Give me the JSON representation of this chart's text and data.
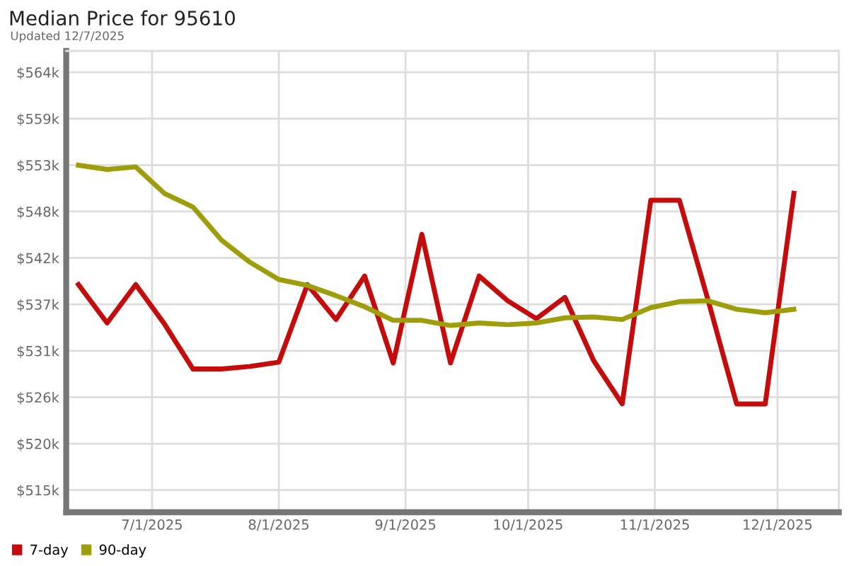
{
  "chart_data": {
    "type": "line",
    "title": "Median Price for 95610",
    "subtitle": "Updated 12/7/2025",
    "x": [
      "2025-06-13",
      "2025-06-20",
      "2025-06-27",
      "2025-07-04",
      "2025-07-11",
      "2025-07-18",
      "2025-07-25",
      "2025-08-01",
      "2025-08-08",
      "2025-08-15",
      "2025-08-22",
      "2025-08-29",
      "2025-09-05",
      "2025-09-12",
      "2025-09-19",
      "2025-09-26",
      "2025-10-03",
      "2025-10-10",
      "2025-10-17",
      "2025-10-24",
      "2025-10-31",
      "2025-11-07",
      "2025-11-14",
      "2025-11-21",
      "2025-11-28",
      "2025-12-05"
    ],
    "series": [
      {
        "name": "7-day",
        "color": "#c40c0c",
        "values": [
          539.1,
          534.6,
          539.1,
          534.5,
          529.2,
          529.2,
          529.5,
          530.0,
          539.1,
          535.0,
          540.1,
          529.9,
          545.0,
          529.9,
          540.1,
          537.2,
          535.1,
          537.6,
          530.2,
          525.1,
          549.0,
          549.0,
          537.3,
          525.1,
          525.1,
          549.8
        ]
      },
      {
        "name": "90-day",
        "color": "#9e9e0c",
        "values": [
          553.1,
          552.6,
          552.9,
          549.8,
          548.2,
          544.3,
          541.7,
          539.7,
          539.0,
          537.8,
          536.5,
          534.9,
          534.9,
          534.3,
          534.6,
          534.4,
          534.6,
          535.2,
          535.3,
          535.0,
          536.4,
          537.1,
          537.2,
          536.2,
          535.8,
          536.2
        ]
      }
    ],
    "xlim": [
      "2025-06-10",
      "2025-12-16"
    ],
    "xticks": [
      {
        "value": "2025-07-01",
        "label": "7/1/2025"
      },
      {
        "value": "2025-08-01",
        "label": "8/1/2025"
      },
      {
        "value": "2025-09-01",
        "label": "9/1/2025"
      },
      {
        "value": "2025-10-01",
        "label": "10/1/2025"
      },
      {
        "value": "2025-11-01",
        "label": "11/1/2025"
      },
      {
        "value": "2025-12-01",
        "label": "12/1/2025"
      }
    ],
    "ylim": [
      512.4,
      566.5
    ],
    "yticks": [
      {
        "value": 515,
        "label": "$515k"
      },
      {
        "value": 520.44,
        "label": "$520k"
      },
      {
        "value": 525.89,
        "label": "$526k"
      },
      {
        "value": 531.33,
        "label": "$531k"
      },
      {
        "value": 536.78,
        "label": "$537k"
      },
      {
        "value": 542.22,
        "label": "$542k"
      },
      {
        "value": 547.67,
        "label": "$548k"
      },
      {
        "value": 553.11,
        "label": "$553k"
      },
      {
        "value": 558.56,
        "label": "$559k"
      },
      {
        "value": 564,
        "label": "$564k"
      }
    ],
    "grid": true,
    "legend": "bottom left",
    "marker": "none",
    "line_style": "solid"
  }
}
